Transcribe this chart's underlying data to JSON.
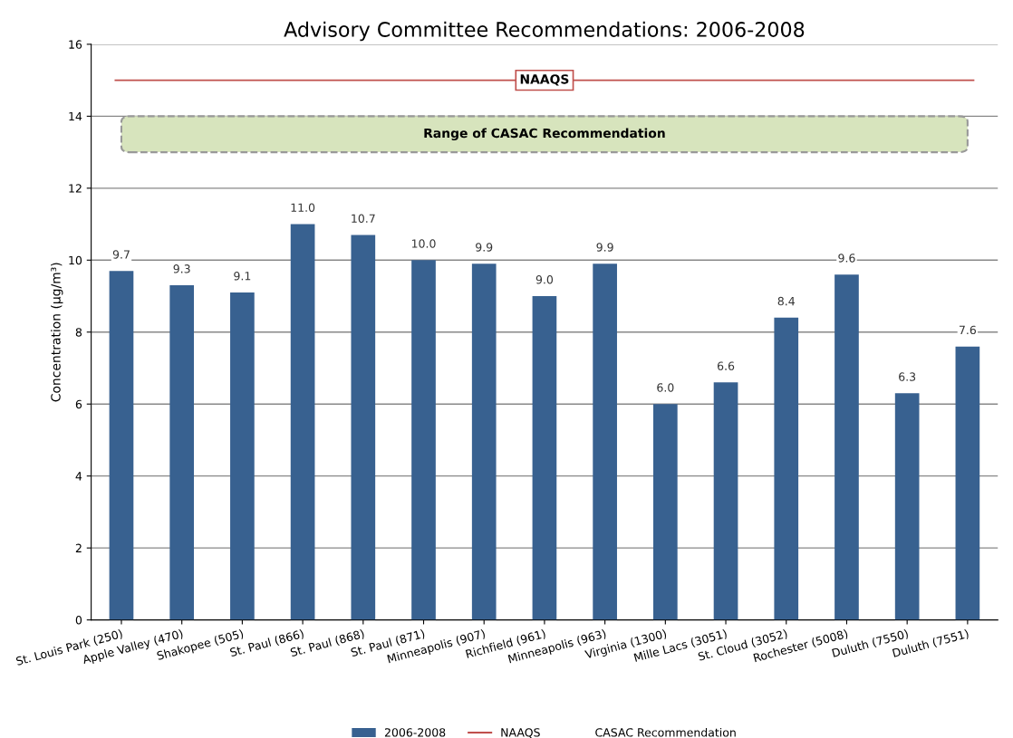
{
  "chart_data": {
    "type": "bar",
    "title": "Advisory Committee Recommendations: 2006-2008",
    "ylabel": "Concentration (µg/m³)",
    "categories": [
      "St. Louis Park (250)",
      "Apple Valley (470)",
      "Shakopee (505)",
      "St. Paul (866)",
      "St. Paul (868)",
      "St. Paul (871)",
      "Minneapolis (907)",
      "Richfield (961)",
      "Minneapolis (963)",
      "Virginia (1300)",
      "Mille Lacs (3051)",
      "St. Cloud (3052)",
      "Rochester (5008)",
      "Duluth (7550)",
      "Duluth (7551)"
    ],
    "series": [
      {
        "name": "2006-2008",
        "color": "#386190",
        "values": [
          9.7,
          9.3,
          9.1,
          11.0,
          10.7,
          10.0,
          9.9,
          9.0,
          9.9,
          6.0,
          6.6,
          8.4,
          9.6,
          6.3,
          7.6
        ],
        "value_labels": [
          "9.7",
          "9.3",
          "9.1",
          "11.0",
          "10.7",
          "10.0",
          "9.9",
          "9.0",
          "9.9",
          "6.0",
          "6.6",
          "8.4",
          "9.6",
          "6.3",
          "7.6"
        ]
      }
    ],
    "annotations": [
      "CASAC Recommendation"
    ],
    "ylim": [
      0,
      16
    ],
    "yticks": [
      0,
      2,
      4,
      6,
      8,
      10,
      12,
      14,
      16
    ],
    "grid": "y",
    "legend": "bottom",
    "ref_lines": [
      {
        "axis": "y",
        "value": 15,
        "label": "NAAQS",
        "color": "#c0504d",
        "line_style": "solid"
      }
    ],
    "bands": [
      {
        "axis": "y",
        "from": 13,
        "to": 14,
        "label": "Range of CASAC Recommendation",
        "color": "#d7e4bd"
      }
    ]
  }
}
